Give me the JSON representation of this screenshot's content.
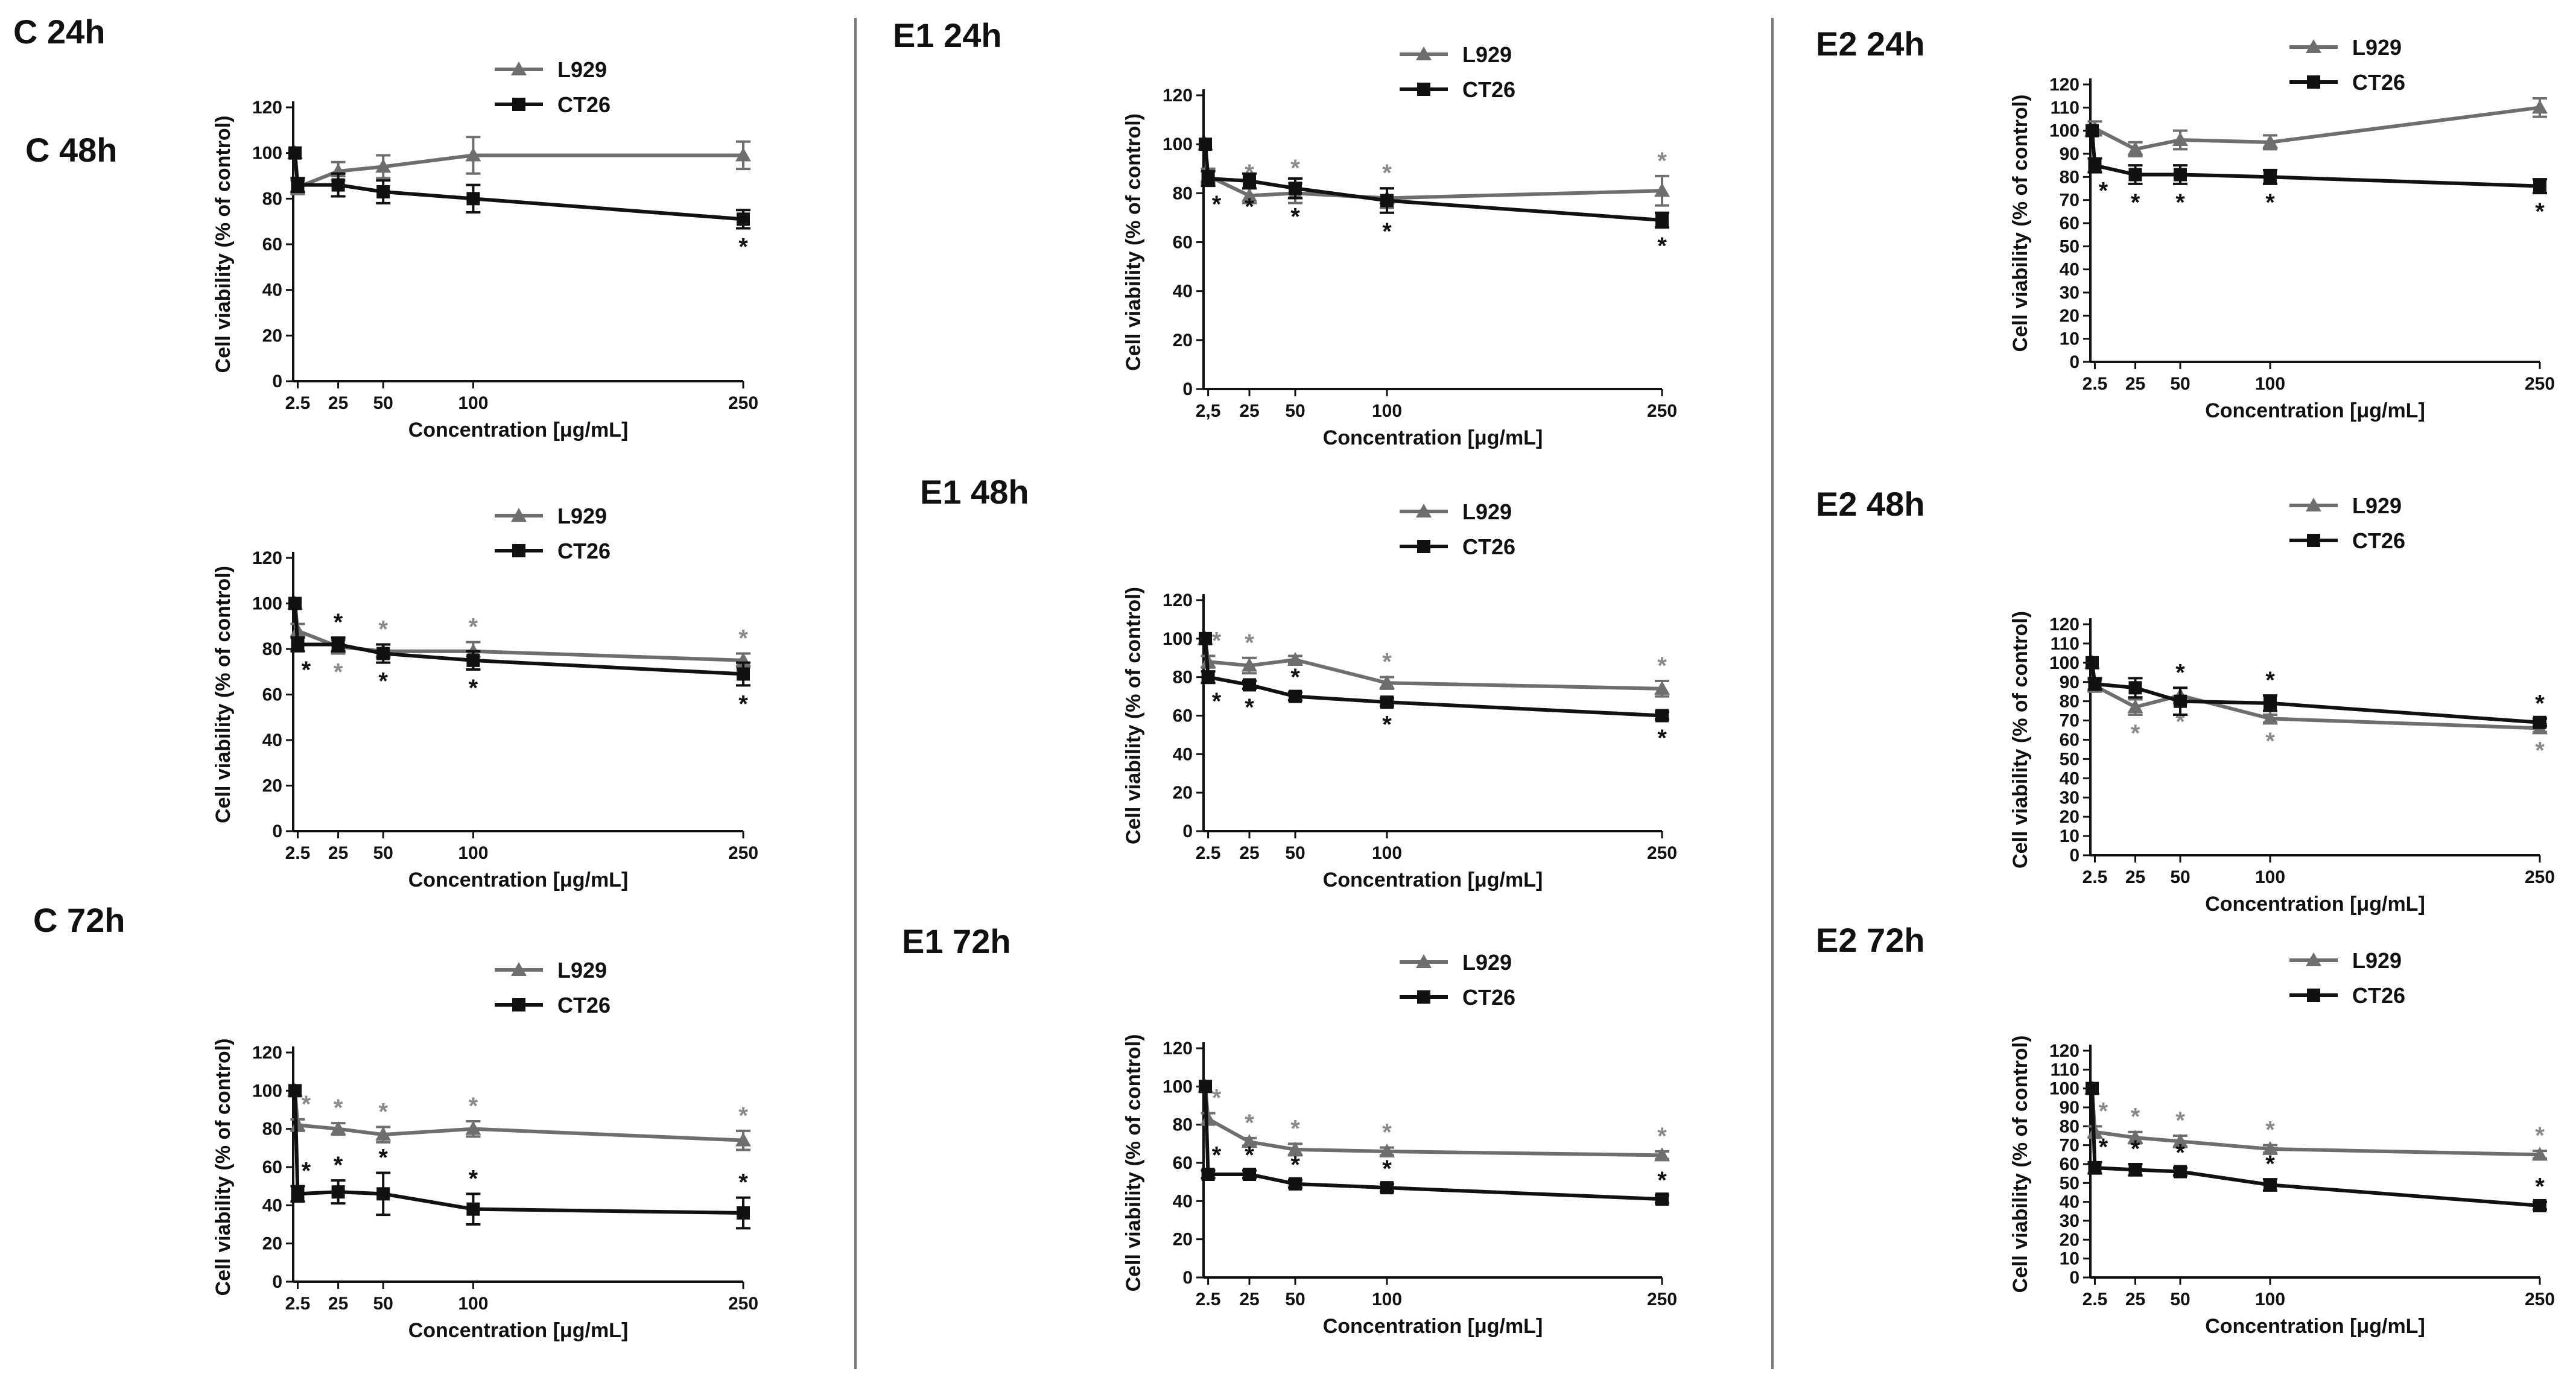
{
  "figure": {
    "xlabel": "Concentration [μg/mL]",
    "ylabel": "Cell viability (% of control)",
    "star_symbol": "*",
    "series_styles": [
      {
        "name": "L929",
        "color": "#6e6e6e",
        "marker": "triangle",
        "star_color": "#8a8a8a"
      },
      {
        "name": "CT26",
        "color": "#111111",
        "marker": "square",
        "star_color": "#111111"
      }
    ]
  },
  "chart_data": [
    {
      "type": "line",
      "title": "C 24h",
      "x": [
        1,
        2.5,
        25,
        50,
        100,
        250
      ],
      "x_ticks": [
        2.5,
        25,
        50,
        100,
        250
      ],
      "x_tick_labels": [
        "2.5",
        "25",
        "50",
        "100",
        "250"
      ],
      "xlim": [
        0,
        250
      ],
      "ylim": [
        0,
        120
      ],
      "yticks": [
        0,
        20,
        40,
        60,
        80,
        100,
        120
      ],
      "xlabel": "Concentration [μg/mL]",
      "ylabel": "Cell viability (% of control)",
      "series": [
        {
          "name": "L929",
          "values": [
            100,
            85,
            92,
            94,
            99,
            99
          ],
          "errors": [
            0,
            3,
            4,
            5,
            8,
            6
          ],
          "sig_above": [],
          "sig_below": []
        },
        {
          "name": "CT26",
          "values": [
            100,
            86,
            86,
            83,
            80,
            71
          ],
          "errors": [
            0,
            3,
            5,
            5,
            6,
            4
          ],
          "sig_above": [],
          "sig_below": [
            5
          ]
        }
      ]
    },
    {
      "type": "line",
      "title": "E1 24h",
      "x": [
        1,
        2.5,
        25,
        50,
        100,
        250
      ],
      "x_ticks": [
        2.5,
        25,
        50,
        100,
        250
      ],
      "x_tick_labels": [
        "2,5",
        "25",
        "50",
        "100",
        "250"
      ],
      "xlim": [
        0,
        250
      ],
      "ylim": [
        0,
        120
      ],
      "yticks": [
        0,
        20,
        40,
        60,
        80,
        100,
        120
      ],
      "xlabel": "Concentration [μg/mL]",
      "ylabel": "Cell viability (% of control)",
      "series": [
        {
          "name": "L929",
          "values": [
            100,
            87,
            79,
            80,
            78,
            81
          ],
          "errors": [
            0,
            3,
            3,
            4,
            4,
            6
          ],
          "sig_above": [
            2,
            3,
            4,
            5
          ],
          "sig_below": []
        },
        {
          "name": "CT26",
          "values": [
            100,
            86,
            85,
            82,
            77,
            69
          ],
          "errors": [
            0,
            3,
            3,
            4,
            5,
            3
          ],
          "sig_above": [],
          "sig_below": [
            1,
            2,
            3,
            4,
            5
          ]
        }
      ]
    },
    {
      "type": "line",
      "title": "E2 24h",
      "x": [
        1,
        2.5,
        25,
        50,
        100,
        250
      ],
      "x_ticks": [
        2.5,
        25,
        50,
        100,
        250
      ],
      "x_tick_labels": [
        "2.5",
        "25",
        "50",
        "100",
        "250"
      ],
      "xlim": [
        0,
        250
      ],
      "ylim": [
        0,
        120
      ],
      "yticks": [
        0,
        10,
        20,
        30,
        40,
        50,
        60,
        70,
        80,
        90,
        100,
        110,
        120
      ],
      "xlabel": "Concentration [μg/mL]",
      "ylabel": "Cell viability (% of control)",
      "series": [
        {
          "name": "L929",
          "values": [
            100,
            101,
            92,
            96,
            95,
            110
          ],
          "errors": [
            0,
            3,
            3,
            4,
            3,
            4
          ],
          "sig_above": [],
          "sig_below": []
        },
        {
          "name": "CT26",
          "values": [
            100,
            85,
            81,
            81,
            80,
            76
          ],
          "errors": [
            0,
            3,
            4,
            4,
            3,
            3
          ],
          "sig_above": [],
          "sig_below": [
            1,
            2,
            3,
            4,
            5
          ]
        }
      ]
    },
    {
      "type": "line",
      "title": "C 48h",
      "x": [
        1,
        2.5,
        25,
        50,
        100,
        250
      ],
      "x_ticks": [
        2.5,
        25,
        50,
        100,
        250
      ],
      "x_tick_labels": [
        "2.5",
        "25",
        "50",
        "100",
        "250"
      ],
      "xlim": [
        0,
        250
      ],
      "ylim": [
        0,
        120
      ],
      "yticks": [
        0,
        20,
        40,
        60,
        80,
        100,
        120
      ],
      "xlabel": "Concentration [μg/mL]",
      "ylabel": "Cell viability (% of control)",
      "series": [
        {
          "name": "L929",
          "values": [
            100,
            88,
            81,
            79,
            79,
            75
          ],
          "errors": [
            0,
            3,
            3,
            3,
            4,
            3
          ],
          "sig_above": [
            3,
            4,
            5
          ],
          "sig_below": [
            2
          ]
        },
        {
          "name": "CT26",
          "values": [
            100,
            82,
            82,
            78,
            75,
            69
          ],
          "errors": [
            0,
            3,
            3,
            4,
            4,
            5
          ],
          "sig_above": [
            2
          ],
          "sig_below": [
            1,
            3,
            4,
            5
          ]
        }
      ]
    },
    {
      "type": "line",
      "title": "E1 48h",
      "x": [
        1,
        2.5,
        25,
        50,
        100,
        250
      ],
      "x_ticks": [
        2.5,
        25,
        50,
        100,
        250
      ],
      "x_tick_labels": [
        "2.5",
        "25",
        "50",
        "100",
        "250"
      ],
      "xlim": [
        0,
        250
      ],
      "ylim": [
        0,
        120
      ],
      "yticks": [
        0,
        20,
        40,
        60,
        80,
        100,
        120
      ],
      "xlabel": "Concentration [μg/mL]",
      "ylabel": "Cell viability (% of control)",
      "series": [
        {
          "name": "L929",
          "values": [
            100,
            88,
            86,
            89,
            77,
            74
          ],
          "errors": [
            0,
            3,
            4,
            2,
            3,
            4
          ],
          "sig_above": [
            1,
            2,
            4,
            5
          ],
          "sig_below": []
        },
        {
          "name": "CT26",
          "values": [
            100,
            80,
            76,
            70,
            67,
            60
          ],
          "errors": [
            0,
            3,
            2,
            2,
            2,
            2
          ],
          "sig_above": [
            3
          ],
          "sig_below": [
            1,
            2,
            4,
            5
          ]
        }
      ]
    },
    {
      "type": "line",
      "title": "E2 48h",
      "x": [
        1,
        2.5,
        25,
        50,
        100,
        250
      ],
      "x_ticks": [
        2.5,
        25,
        50,
        100,
        250
      ],
      "x_tick_labels": [
        "2.5",
        "25",
        "50",
        "100",
        "250"
      ],
      "xlim": [
        0,
        250
      ],
      "ylim": [
        0,
        120
      ],
      "yticks": [
        0,
        10,
        20,
        30,
        40,
        50,
        60,
        70,
        80,
        90,
        100,
        110,
        120
      ],
      "xlabel": "Concentration [μg/mL]",
      "ylabel": "Cell viability (% of control)",
      "series": [
        {
          "name": "L929",
          "values": [
            100,
            88,
            77,
            83,
            71,
            66
          ],
          "errors": [
            0,
            3,
            4,
            4,
            2,
            2
          ],
          "sig_above": [],
          "sig_below": [
            2,
            3,
            4,
            5
          ]
        },
        {
          "name": "CT26",
          "values": [
            100,
            89,
            87,
            80,
            79,
            69
          ],
          "errors": [
            0,
            3,
            5,
            7,
            4,
            2
          ],
          "sig_above": [
            3,
            4,
            5
          ],
          "sig_below": []
        }
      ]
    },
    {
      "type": "line",
      "title": "C 72h",
      "x": [
        1,
        2.5,
        25,
        50,
        100,
        250
      ],
      "x_ticks": [
        2.5,
        25,
        50,
        100,
        250
      ],
      "x_tick_labels": [
        "2.5",
        "25",
        "50",
        "100",
        "250"
      ],
      "xlim": [
        0,
        250
      ],
      "ylim": [
        0,
        120
      ],
      "yticks": [
        0,
        20,
        40,
        60,
        80,
        100,
        120
      ],
      "xlabel": "Concentration [μg/mL]",
      "ylabel": "Cell viability (% of control)",
      "series": [
        {
          "name": "L929",
          "values": [
            100,
            82,
            80,
            77,
            80,
            74
          ],
          "errors": [
            0,
            3,
            3,
            4,
            4,
            5
          ],
          "sig_above": [
            1,
            2,
            3,
            4,
            5
          ],
          "sig_below": []
        },
        {
          "name": "CT26",
          "values": [
            100,
            46,
            47,
            46,
            38,
            36
          ],
          "errors": [
            0,
            4,
            6,
            11,
            8,
            8
          ],
          "sig_above": [
            1,
            2,
            3,
            4,
            5
          ],
          "sig_below": []
        }
      ]
    },
    {
      "type": "line",
      "title": "E1 72h",
      "x": [
        1,
        2.5,
        25,
        50,
        100,
        250
      ],
      "x_ticks": [
        2.5,
        25,
        50,
        100,
        250
      ],
      "x_tick_labels": [
        "2.5",
        "25",
        "50",
        "100",
        "250"
      ],
      "xlim": [
        0,
        250
      ],
      "ylim": [
        0,
        120
      ],
      "yticks": [
        0,
        20,
        40,
        60,
        80,
        100,
        120
      ],
      "xlabel": "Concentration [μg/mL]",
      "ylabel": "Cell viability (% of control)",
      "series": [
        {
          "name": "L929",
          "values": [
            100,
            83,
            71,
            67,
            66,
            64
          ],
          "errors": [
            0,
            3,
            2,
            3,
            2,
            2
          ],
          "sig_above": [
            1,
            2,
            3,
            4,
            5
          ],
          "sig_below": []
        },
        {
          "name": "CT26",
          "values": [
            100,
            54,
            54,
            49,
            47,
            41
          ],
          "errors": [
            0,
            2,
            2,
            2,
            2,
            2
          ],
          "sig_above": [
            1,
            2,
            3,
            4,
            5
          ],
          "sig_below": []
        }
      ]
    },
    {
      "type": "line",
      "title": "E2 72h",
      "x": [
        1,
        2.5,
        25,
        50,
        100,
        250
      ],
      "x_ticks": [
        2.5,
        25,
        50,
        100,
        250
      ],
      "x_tick_labels": [
        "2.5",
        "25",
        "50",
        "100",
        "250"
      ],
      "xlim": [
        0,
        250
      ],
      "ylim": [
        0,
        120
      ],
      "yticks": [
        0,
        10,
        20,
        30,
        40,
        50,
        60,
        70,
        80,
        90,
        100,
        110,
        120
      ],
      "xlabel": "Concentration [μg/mL]",
      "ylabel": "Cell viability (% of control)",
      "series": [
        {
          "name": "L929",
          "values": [
            100,
            77,
            74,
            72,
            68,
            65
          ],
          "errors": [
            0,
            3,
            3,
            3,
            2,
            2
          ],
          "sig_above": [
            1,
            2,
            3,
            4,
            5
          ],
          "sig_below": []
        },
        {
          "name": "CT26",
          "values": [
            100,
            58,
            57,
            56,
            49,
            38
          ],
          "errors": [
            0,
            3,
            3,
            2,
            3,
            2
          ],
          "sig_above": [
            1,
            2,
            3,
            4,
            5
          ],
          "sig_below": []
        }
      ]
    }
  ]
}
